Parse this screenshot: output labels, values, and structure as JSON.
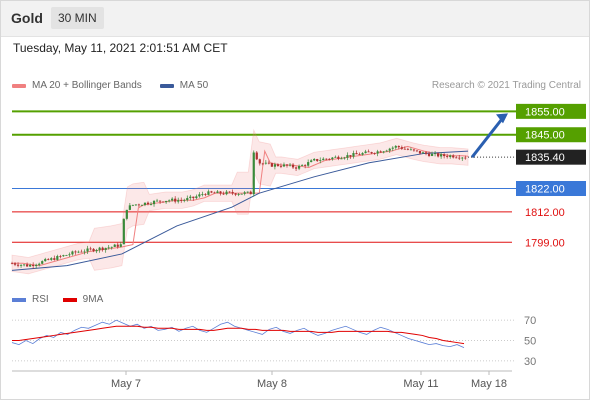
{
  "header": {
    "instrument": "Gold",
    "timeframe": "30 MIN"
  },
  "datetime": "Tuesday, May 11, 2021 2:01:51 AM CET",
  "legend": {
    "ma20": {
      "label": "MA 20 + Bollinger Bands",
      "color": "#f08080"
    },
    "ma50": {
      "label": "MA 50",
      "color": "#3a5a9a"
    }
  },
  "credit": "Research © 2021 Trading Central",
  "rsi_legend": {
    "rsi": {
      "label": "RSI",
      "color": "#5b7fd6"
    },
    "ma9": {
      "label": "9MA",
      "color": "#e00000"
    }
  },
  "chart_data": [
    {
      "type": "candlestick",
      "y_range": [
        1785,
        1862
      ],
      "last_price": {
        "value": 1835.4,
        "label": "1835.40"
      },
      "levels": [
        {
          "value": 1855.0,
          "label": "1855.00",
          "style": "resistance-box",
          "color": "#55a000"
        },
        {
          "value": 1845.0,
          "label": "1845.00",
          "style": "resistance-box",
          "color": "#55a000"
        },
        {
          "value": 1822.0,
          "label": "1822.00",
          "style": "pivot-box",
          "color": "#3a78d8"
        },
        {
          "value": 1812.0,
          "label": "1812.00",
          "style": "support-text",
          "color": "#e01010"
        },
        {
          "value": 1799.0,
          "label": "1799.00",
          "style": "support-text",
          "color": "#e01010"
        }
      ],
      "x_labels": [
        "May 7",
        "May 8",
        "May 11",
        "May 18"
      ],
      "close_path": [
        [
          0,
          1790
        ],
        [
          6,
          1789
        ],
        [
          12,
          1791
        ],
        [
          18,
          1793
        ],
        [
          24,
          1795
        ],
        [
          30,
          1796
        ],
        [
          36,
          1797
        ],
        [
          40,
          1798
        ],
        [
          41,
          1813
        ],
        [
          44,
          1815
        ],
        [
          50,
          1816
        ],
        [
          56,
          1817
        ],
        [
          62,
          1817
        ],
        [
          66,
          1818
        ],
        [
          70,
          1820
        ],
        [
          76,
          1820
        ],
        [
          82,
          1820
        ],
        [
          87,
          1820
        ],
        [
          88,
          1838
        ],
        [
          90,
          1833
        ],
        [
          94,
          1832
        ],
        [
          98,
          1832
        ],
        [
          104,
          1831
        ],
        [
          110,
          1834
        ],
        [
          116,
          1835
        ],
        [
          122,
          1836
        ],
        [
          128,
          1837
        ],
        [
          134,
          1838
        ],
        [
          140,
          1840
        ],
        [
          146,
          1838
        ],
        [
          150,
          1837
        ],
        [
          156,
          1836
        ],
        [
          160,
          1836
        ],
        [
          166,
          1835.4
        ]
      ],
      "ma50_path": [
        [
          0,
          1787
        ],
        [
          20,
          1789
        ],
        [
          40,
          1794
        ],
        [
          60,
          1806
        ],
        [
          80,
          1814
        ],
        [
          90,
          1820
        ],
        [
          110,
          1827
        ],
        [
          130,
          1833
        ],
        [
          150,
          1837
        ],
        [
          166,
          1838
        ]
      ],
      "projection": {
        "from": [
          166,
          1835.4
        ],
        "to": [
          182,
          1855
        ]
      }
    },
    {
      "type": "line",
      "title": "RSI",
      "y_ticks": [
        70,
        50,
        30
      ],
      "y_range": [
        25,
        78
      ],
      "series": [
        {
          "name": "RSI",
          "values": [
            48,
            46,
            50,
            47,
            52,
            55,
            53,
            58,
            56,
            60,
            63,
            62,
            65,
            68,
            66,
            70,
            67,
            64,
            66,
            62,
            64,
            60,
            61,
            63,
            59,
            62,
            64,
            60,
            58,
            62,
            66,
            68,
            64,
            62,
            60,
            58,
            56,
            61,
            63,
            59,
            57,
            60,
            62,
            58,
            55,
            57,
            60,
            62,
            64,
            61,
            58,
            56,
            60,
            63,
            61,
            58,
            55,
            52,
            50,
            48,
            46,
            47,
            45,
            44,
            46,
            43
          ]
        },
        {
          "name": "9MA",
          "values": [
            50,
            50,
            51,
            52,
            53,
            54,
            55,
            56,
            57,
            58,
            59,
            60,
            61,
            62,
            63,
            64,
            64,
            64,
            64,
            63,
            63,
            62,
            62,
            62,
            61,
            61,
            61,
            61,
            60,
            60,
            61,
            62,
            62,
            62,
            61,
            61,
            60,
            60,
            60,
            60,
            59,
            59,
            59,
            59,
            58,
            58,
            58,
            59,
            59,
            59,
            59,
            59,
            59,
            59,
            59,
            58,
            58,
            57,
            56,
            55,
            53,
            52,
            50,
            49,
            48,
            47
          ]
        }
      ]
    }
  ]
}
